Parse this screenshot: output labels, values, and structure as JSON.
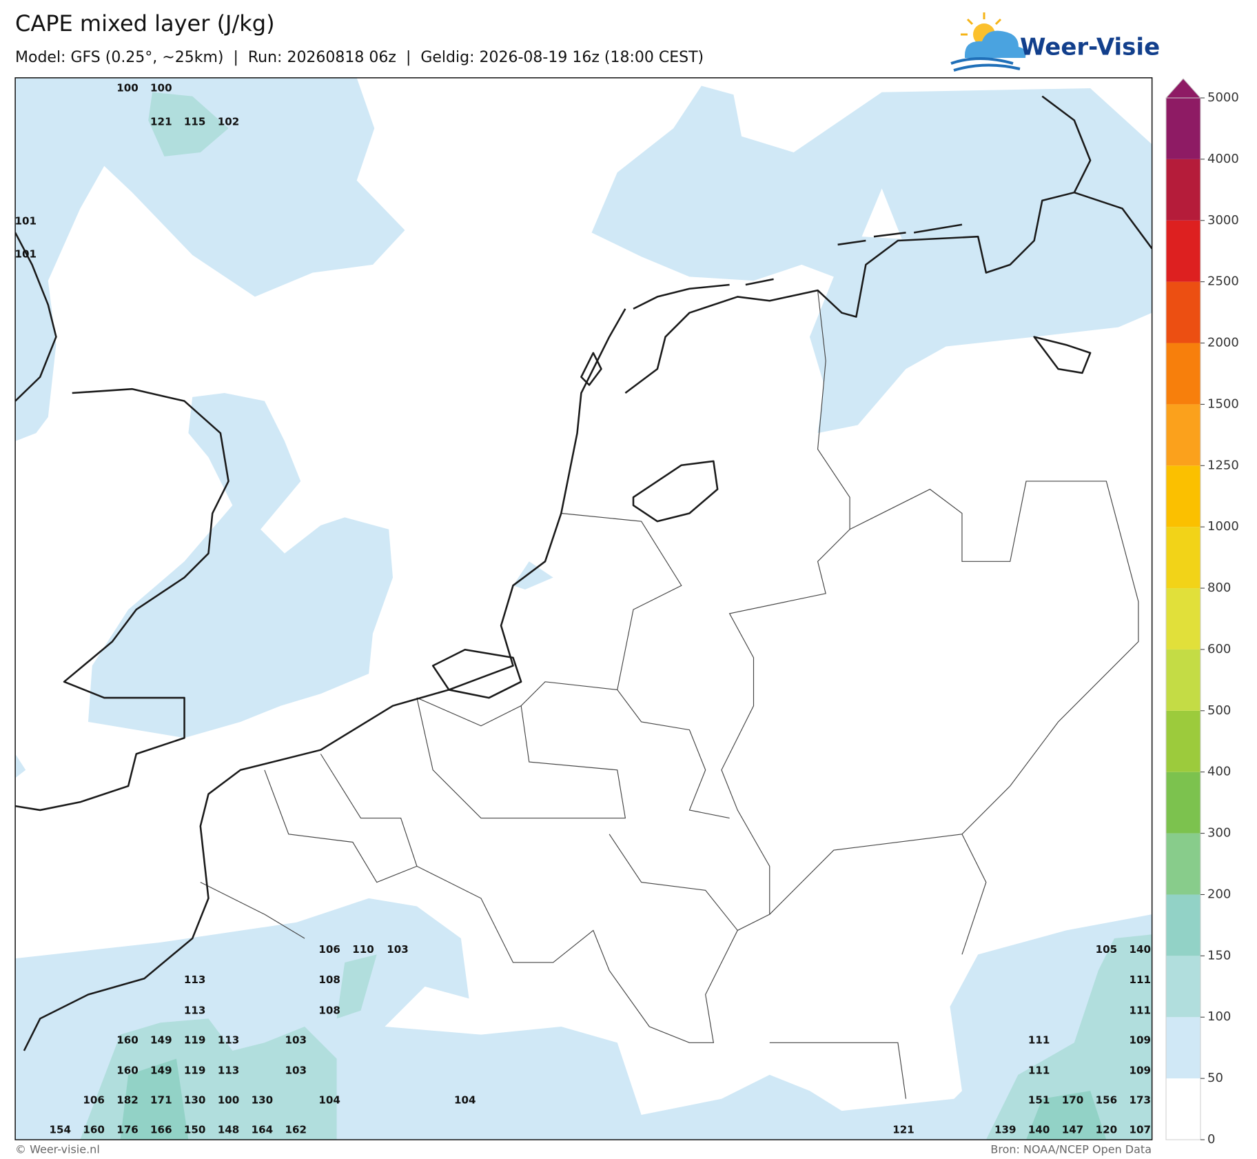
{
  "header": {
    "title": "CAPE mixed layer (J/kg)",
    "subtitle": "Model: GFS (0.25°, ~25km)  |  Run: 20260818 06z  |  Geldig: 2026-08-19 16z (18:00 CEST)",
    "logo": "Weer-Visie"
  },
  "map": {
    "labels": [
      100,
      100,
      121,
      115,
      102,
      101,
      101,
      106,
      110,
      103,
      105,
      140,
      113,
      108,
      111,
      113,
      108,
      111,
      160,
      149,
      119,
      113,
      103,
      111,
      109,
      160,
      149,
      119,
      113,
      103,
      111,
      109,
      106,
      182,
      171,
      130,
      100,
      130,
      104,
      104,
      151,
      170,
      156,
      173,
      154,
      160,
      176,
      166,
      150,
      148,
      164,
      162,
      121,
      139,
      140,
      147,
      120,
      107
    ]
  },
  "colorbar": {
    "levels": [
      0,
      50,
      100,
      150,
      200,
      300,
      400,
      500,
      600,
      800,
      1000,
      1250,
      1500,
      2000,
      2500,
      3000,
      4000,
      5000
    ],
    "colors": [
      "#ffffff",
      "#d0e8f6",
      "#b1dedd",
      "#92d2c6",
      "#88cc8b",
      "#7cc24e",
      "#9ccb3c",
      "#c4dc45",
      "#e1e03a",
      "#f2d318",
      "#fbc000",
      "#fba11c",
      "#f77f0c",
      "#ec4f12",
      "#dd2020",
      "#b51c3a",
      "#8e1b64"
    ],
    "extend_color": "#8e1b64"
  },
  "footer": {
    "credit": "© Weer-visie.nl",
    "source": "Bron: NOAA/NCEP Open Data"
  }
}
